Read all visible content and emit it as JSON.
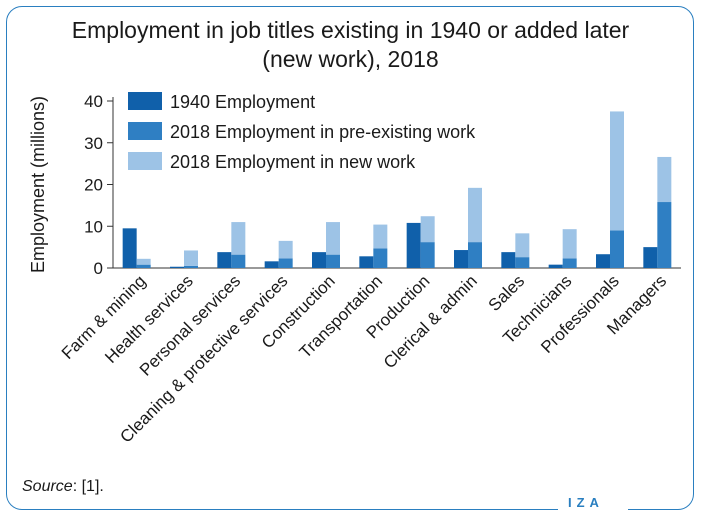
{
  "title_line1": "Employment in job titles existing in 1940 or added later",
  "title_line2": "(new work), 2018",
  "source_label": "Source",
  "source_text": ": [1].",
  "logo_text": "IZA",
  "colors": {
    "frame": "#2a7fc0",
    "series_1940": "#1060aa",
    "series_2018_pre": "#2f7fc3",
    "series_2018_new": "#9dc3e6"
  },
  "chart_data": {
    "type": "bar",
    "title": "Employment in job titles existing in 1940 or added later (new work), 2018",
    "ylabel": "Employment (millions)",
    "xlabel": "",
    "ylim": [
      0,
      40
    ],
    "yticks": [
      0,
      10,
      20,
      30,
      40
    ],
    "grid": false,
    "legend_position": "top-left",
    "categories": [
      "Farm & mining",
      "Health services",
      "Personal services",
      "Cleaning & protective services",
      "Construction",
      "Transportation",
      "Production",
      "Clerical & admin",
      "Sales",
      "Technicians",
      "Professionals",
      "Managers"
    ],
    "series": [
      {
        "name": "1940 Employment",
        "values": [
          9.5,
          0.3,
          3.8,
          1.6,
          3.8,
          2.8,
          10.8,
          4.3,
          3.8,
          0.8,
          3.3,
          5.0
        ]
      },
      {
        "name": "2018 Employment in pre-existing work",
        "values": [
          0.8,
          0.5,
          3.2,
          2.3,
          3.2,
          4.7,
          6.2,
          6.2,
          2.6,
          2.3,
          9.0,
          15.8
        ]
      },
      {
        "name": "2018 Employment in new work",
        "values": [
          1.4,
          3.7,
          7.8,
          4.2,
          7.8,
          5.7,
          6.2,
          13.0,
          5.7,
          7.0,
          28.5,
          10.8
        ]
      }
    ],
    "stacked_2018": true
  }
}
